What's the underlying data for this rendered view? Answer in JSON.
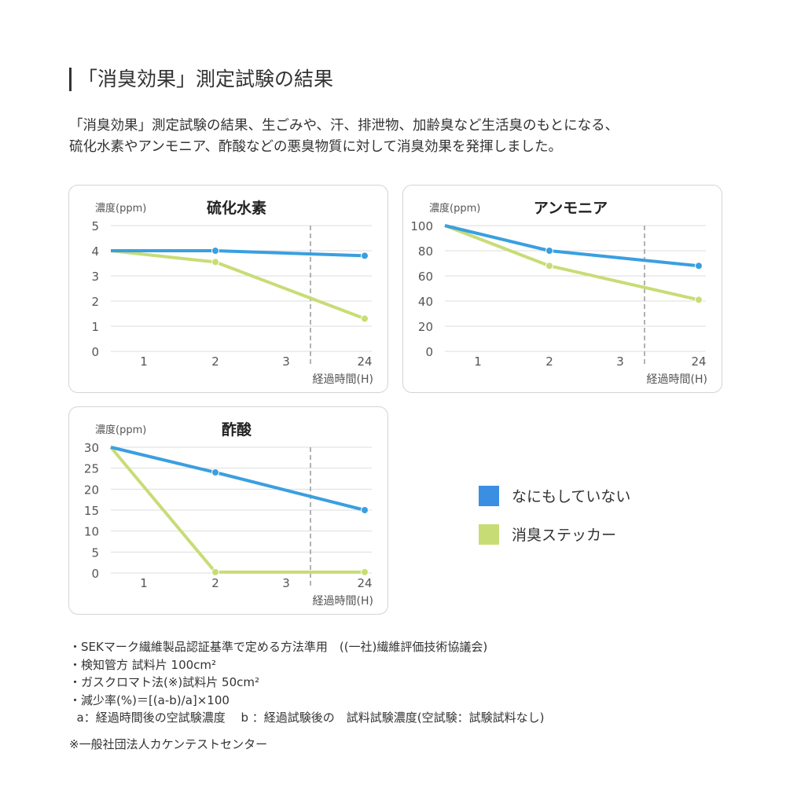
{
  "title": "「消臭効果」測定試験の結果",
  "description": [
    "「消臭効果」測定試験の結果、生ごみや、汗、排泄物、加齢臭など生活臭のもとになる、",
    "硫化水素やアンモニア、酢酸などの悪臭物質に対して消臭効果を発揮しました。"
  ],
  "colors": {
    "none": "#3a9fe0",
    "sticker": "#c8dc76",
    "legend_none": "#3a8fe3",
    "legend_sticker": "#c8dc76"
  },
  "legend": [
    {
      "label": "なにもしていない",
      "color": "#3a8fe3"
    },
    {
      "label": "消臭ステッカー",
      "color": "#c8dc76"
    }
  ],
  "chart_data": [
    {
      "type": "line",
      "title": "硫化水素",
      "ylabel": "濃度(ppm)",
      "xlabel": "経過時間(H)",
      "xticks": [
        "1",
        "2",
        "3",
        "24"
      ],
      "yticks": [
        0,
        1,
        2,
        3,
        4,
        5
      ],
      "ylim": [
        0,
        5
      ],
      "axis_break": "between 3 and 24 (dashed line)",
      "grid": true,
      "series": [
        {
          "key": "none",
          "x": [
            0,
            2,
            24
          ],
          "values": [
            4.0,
            4.0,
            3.8
          ]
        },
        {
          "key": "sticker",
          "x": [
            0,
            2,
            24
          ],
          "values": [
            4.0,
            3.55,
            1.3
          ]
        }
      ]
    },
    {
      "type": "line",
      "title": "アンモニア",
      "ylabel": "濃度(ppm)",
      "xlabel": "経過時間(H)",
      "xticks": [
        "1",
        "2",
        "3",
        "24"
      ],
      "yticks": [
        0,
        20,
        40,
        60,
        80,
        100
      ],
      "ylim": [
        0,
        100
      ],
      "axis_break": "between 3 and 24 (dashed line)",
      "grid": true,
      "series": [
        {
          "key": "none",
          "x": [
            0,
            2,
            24
          ],
          "values": [
            100,
            80,
            68
          ]
        },
        {
          "key": "sticker",
          "x": [
            0,
            2,
            24
          ],
          "values": [
            100,
            68,
            41
          ]
        }
      ]
    },
    {
      "type": "line",
      "title": "酢酸",
      "ylabel": "濃度(ppm)",
      "xlabel": "経過時間(H)",
      "xticks": [
        "1",
        "2",
        "3",
        "24"
      ],
      "yticks": [
        0,
        5,
        10,
        15,
        20,
        25,
        30
      ],
      "ylim": [
        0,
        30
      ],
      "axis_break": "between 3 and 24 (dashed line)",
      "grid": true,
      "series": [
        {
          "key": "none",
          "x": [
            0,
            2,
            24
          ],
          "values": [
            30,
            24,
            15
          ]
        },
        {
          "key": "sticker",
          "x": [
            0,
            2,
            24
          ],
          "values": [
            30,
            0.2,
            0.2
          ]
        }
      ]
    }
  ],
  "notes": [
    "・SEKマーク繊維製品認証基準で定める方法準用　((一社)繊維評価技術協議会)",
    "・検知管方 試料片 100cm²",
    "・ガスクロマト法(※)試料片 50cm²",
    "・減少率(%)＝[(a-b)/a]×100",
    "  a：経過時間後の空試験濃度　 b ：経過試験後の　試料試験濃度(空試験：試験試料なし)"
  ],
  "source": "※一般社団法人カケンテストセンター"
}
